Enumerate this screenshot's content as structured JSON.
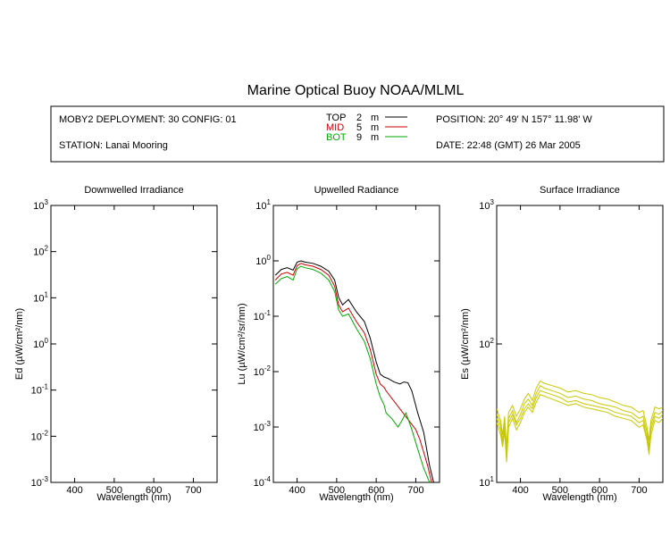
{
  "figure": {
    "title": "Marine Optical Buoy NOAA/MLML",
    "header": {
      "deployment": "MOBY2 DEPLOYMENT: 30 CONFIG: 01",
      "station": "STATION: Lanai Mooring",
      "position": "POSITION: 20° 49' N   157° 11.98' W",
      "date": "DATE: 22:48 (GMT) 26 Mar 2005",
      "legend": [
        {
          "label": "TOP",
          "depth": "2",
          "unit": "m",
          "color": "#000000"
        },
        {
          "label": "MID",
          "depth": "5",
          "unit": "m",
          "color": "#cc0000"
        },
        {
          "label": "BOT",
          "depth": "9",
          "unit": "m",
          "color": "#00aa00"
        }
      ]
    }
  },
  "chart_data": [
    {
      "type": "line",
      "title": "Downwelled Irradiance",
      "xlabel": "Wavelength (nm)",
      "ylabel": "Ed (µW/cm²/nm)",
      "xlim": [
        340,
        760
      ],
      "ylim": [
        0.001,
        1000
      ],
      "yscale": "log",
      "x_ticks": [
        400,
        500,
        600,
        700
      ],
      "y_ticks": [
        "10-3",
        "10-2",
        "10-1",
        "100",
        "101",
        "102",
        "103"
      ],
      "series": []
    },
    {
      "type": "line",
      "title": "Upwelled Radiance",
      "xlabel": "Wavelength (nm)",
      "ylabel": "Lu (µW/cm²/sr/nm)",
      "xlim": [
        340,
        760
      ],
      "ylim": [
        0.0001,
        10
      ],
      "yscale": "log",
      "x_ticks": [
        400,
        500,
        600,
        700
      ],
      "y_ticks": [
        "10-4",
        "10-3",
        "10-2",
        "10-1",
        "100",
        "101"
      ],
      "series": [
        {
          "name": "TOP",
          "color": "#000000",
          "x": [
            345,
            360,
            375,
            390,
            400,
            410,
            420,
            440,
            460,
            480,
            495,
            505,
            515,
            530,
            550,
            570,
            585,
            600,
            610,
            620,
            630,
            645,
            660,
            670,
            680,
            690,
            705,
            720,
            735,
            745
          ],
          "y": [
            0.55,
            0.7,
            0.75,
            0.68,
            0.95,
            1.0,
            0.95,
            0.9,
            0.8,
            0.65,
            0.45,
            0.22,
            0.16,
            0.2,
            0.12,
            0.08,
            0.04,
            0.015,
            0.009,
            0.008,
            0.0075,
            0.0065,
            0.006,
            0.0065,
            0.0063,
            0.0045,
            0.0018,
            0.0008,
            0.0002,
            0.0001
          ]
        },
        {
          "name": "MID",
          "color": "#cc0000",
          "x": [
            345,
            360,
            375,
            390,
            400,
            410,
            420,
            440,
            460,
            480,
            495,
            505,
            515,
            530,
            550,
            570,
            585,
            600,
            610,
            620,
            625,
            700,
            710,
            720,
            730,
            740
          ],
          "y": [
            0.45,
            0.58,
            0.62,
            0.55,
            0.82,
            0.9,
            0.85,
            0.8,
            0.7,
            0.55,
            0.35,
            0.16,
            0.12,
            0.14,
            0.08,
            0.05,
            0.025,
            0.009,
            0.006,
            0.0052,
            0.0045,
            0.0009,
            0.0006,
            0.00035,
            0.0002,
            0.0001
          ]
        },
        {
          "name": "BOT",
          "color": "#00aa00",
          "x": [
            345,
            360,
            375,
            390,
            400,
            410,
            420,
            440,
            460,
            480,
            495,
            505,
            515,
            530,
            550,
            570,
            585,
            600,
            610,
            620,
            625,
            640,
            655,
            665,
            675,
            690,
            705,
            720,
            735
          ],
          "y": [
            0.38,
            0.48,
            0.52,
            0.45,
            0.72,
            0.8,
            0.75,
            0.7,
            0.6,
            0.45,
            0.28,
            0.13,
            0.1,
            0.11,
            0.06,
            0.035,
            0.017,
            0.006,
            0.0035,
            0.0025,
            0.0018,
            0.0014,
            0.001,
            0.0013,
            0.0018,
            0.0009,
            0.0004,
            0.00018,
            0.0001
          ]
        }
      ]
    },
    {
      "type": "line",
      "title": "Surface Irradiance",
      "xlabel": "Wavelength (nm)",
      "ylabel": "Es (µW/cm²/nm)",
      "xlim": [
        340,
        760
      ],
      "ylim": [
        10,
        1000
      ],
      "yscale": "log",
      "x_ticks": [
        400,
        500,
        600,
        700
      ],
      "y_ticks": [
        "101",
        "102",
        "103"
      ],
      "series": [
        {
          "color": "#c8c800",
          "x": [
            340,
            350,
            355,
            360,
            365,
            370,
            380,
            390,
            400,
            410,
            420,
            430,
            440,
            450,
            460,
            480,
            500,
            520,
            540,
            560,
            580,
            600,
            620,
            640,
            660,
            680,
            700,
            710,
            720,
            725,
            730,
            740,
            750,
            760
          ],
          "y": [
            34,
            28,
            22,
            30,
            18,
            32,
            36,
            30,
            34,
            40,
            44,
            39,
            48,
            54,
            52,
            50,
            48,
            45,
            46,
            44,
            43,
            41,
            40,
            38,
            36,
            35,
            32,
            33,
            25,
            20,
            28,
            35,
            34,
            35
          ]
        },
        {
          "color": "#c8c800",
          "x": [
            340,
            350,
            355,
            360,
            365,
            370,
            380,
            390,
            400,
            410,
            420,
            430,
            440,
            450,
            460,
            480,
            500,
            520,
            540,
            560,
            580,
            600,
            620,
            640,
            660,
            680,
            700,
            710,
            720,
            725,
            730,
            740,
            750,
            760
          ],
          "y": [
            31,
            26,
            20,
            27,
            16,
            29,
            33,
            27,
            31,
            37,
            40,
            36,
            44,
            50,
            48,
            46,
            44,
            41,
            42,
            40,
            39,
            37,
            36,
            35,
            33,
            32,
            29,
            30,
            23,
            18,
            26,
            32,
            31,
            33
          ]
        },
        {
          "color": "#c8c800",
          "x": [
            340,
            350,
            355,
            360,
            365,
            370,
            380,
            390,
            400,
            410,
            420,
            430,
            440,
            450,
            460,
            480,
            500,
            520,
            540,
            560,
            580,
            600,
            620,
            640,
            660,
            680,
            700,
            710,
            720,
            725,
            730,
            740,
            750,
            760
          ],
          "y": [
            29,
            24,
            19,
            25,
            15,
            27,
            31,
            26,
            29,
            34,
            37,
            34,
            41,
            46,
            45,
            43,
            41,
            38,
            39,
            37,
            36,
            35,
            34,
            32,
            31,
            30,
            27,
            28,
            21,
            17,
            24,
            30,
            29,
            31
          ]
        },
        {
          "color": "#c8c800",
          "x": [
            340,
            350,
            355,
            360,
            365,
            370,
            380,
            390,
            400,
            410,
            420,
            430,
            440,
            450,
            460,
            480,
            500,
            520,
            540,
            560,
            580,
            600,
            620,
            640,
            660,
            680,
            700,
            710,
            720,
            725,
            730,
            740,
            750,
            760
          ],
          "y": [
            27,
            22,
            18,
            23,
            14,
            25,
            29,
            24,
            27,
            32,
            35,
            32,
            38,
            43,
            42,
            40,
            38,
            36,
            37,
            35,
            34,
            33,
            32,
            30,
            29,
            28,
            25,
            26,
            20,
            16,
            22,
            28,
            27,
            29
          ]
        }
      ]
    }
  ]
}
